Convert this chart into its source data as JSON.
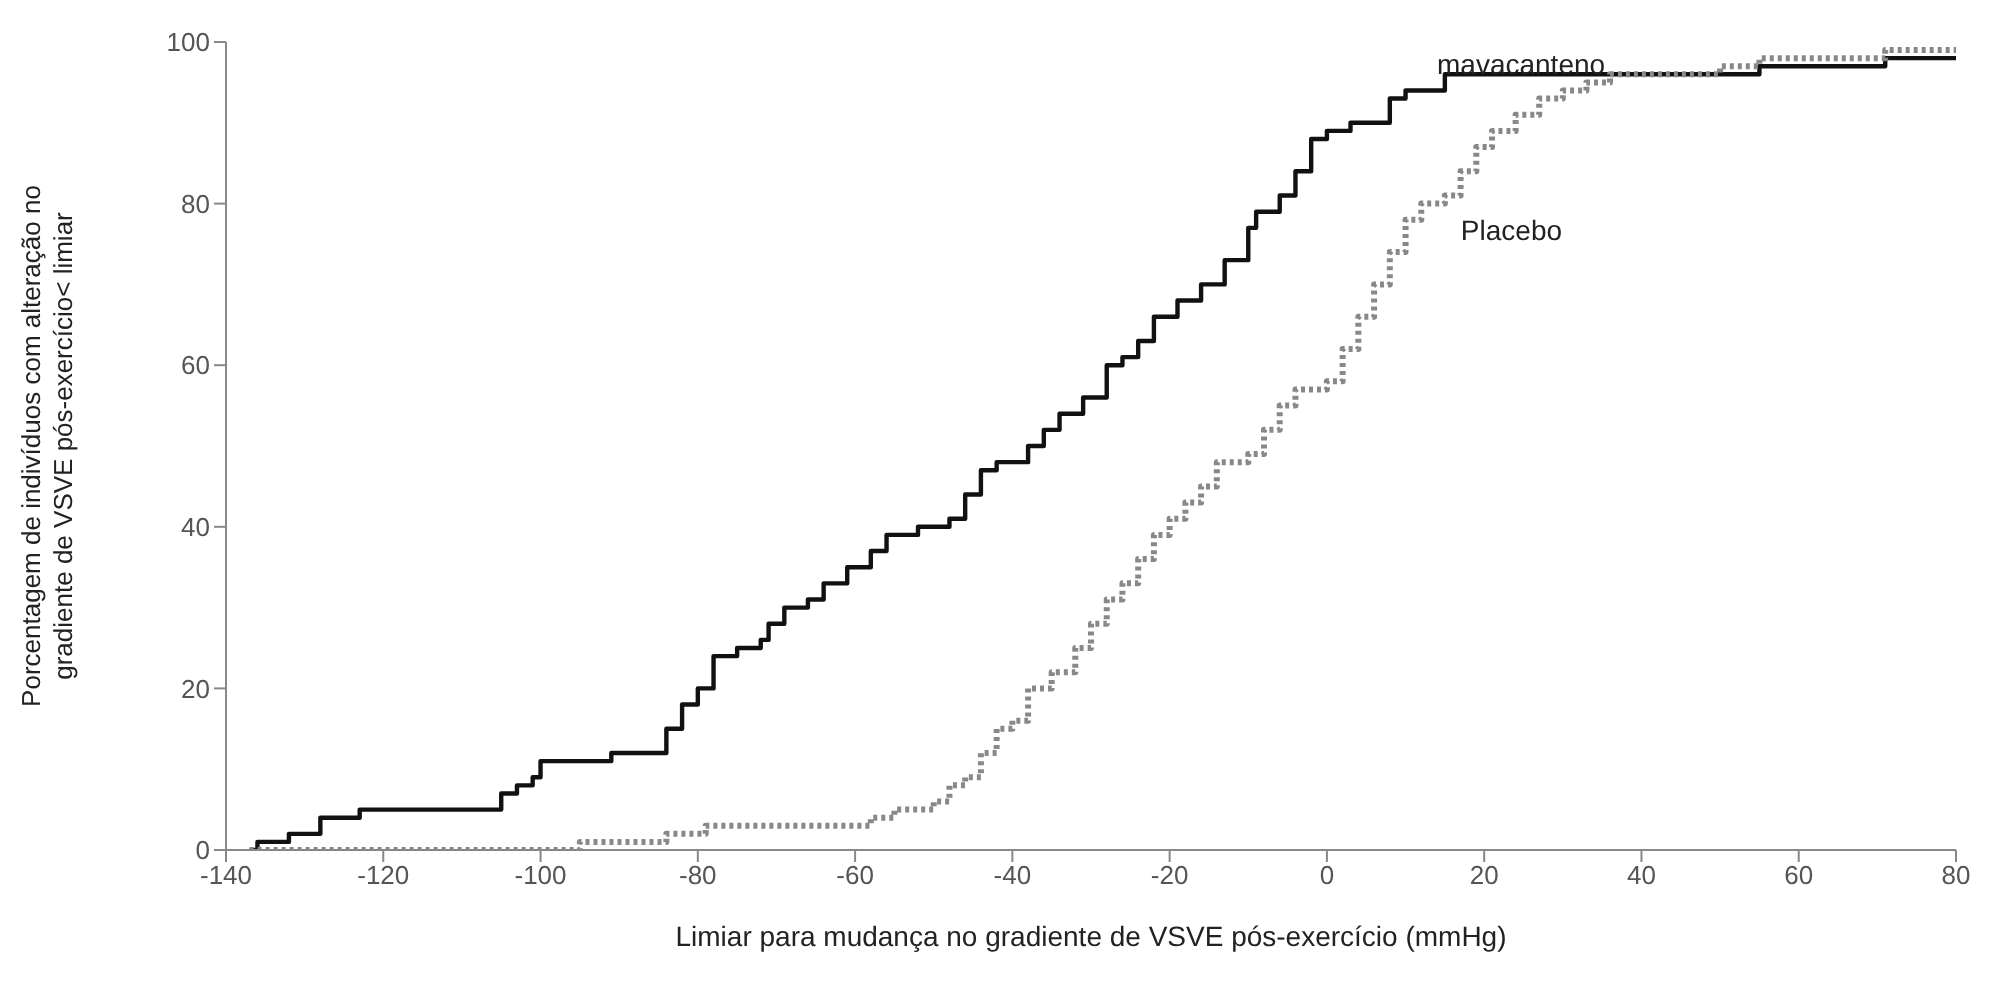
{
  "chart_data": {
    "type": "step",
    "xlabel": "Limiar para mudança no gradiente de VSVE pós-exercício (mmHg)",
    "ylabel": "Porcentagem de indivíduos com alteração no gradiente de VSVE pós-exercício< limiar",
    "xlim": [
      -140,
      80
    ],
    "xticks": [
      -140,
      -120,
      -100,
      -80,
      -60,
      -40,
      -20,
      0,
      20,
      40,
      60,
      80
    ],
    "ylim": [
      0,
      100
    ],
    "yticks": [
      0,
      20,
      40,
      60,
      80,
      100
    ],
    "marker": "none",
    "series": [
      {
        "name": "mavacanteno",
        "color": "#111111",
        "line_style": "solid",
        "x": [
          -137,
          -136,
          -133,
          -132,
          -129,
          -128,
          -124,
          -123,
          -106,
          -105,
          -103,
          -101,
          -100,
          -92,
          -91,
          -85,
          -84,
          -82,
          -80,
          -78,
          -75,
          -72,
          -71,
          -69,
          -66,
          -64,
          -61,
          -58,
          -56,
          -52,
          -48,
          -46,
          -44,
          -42,
          -38,
          -36,
          -34,
          -31,
          -28,
          -26,
          -24,
          -22,
          -19,
          -16,
          -13,
          -10,
          -9,
          -6,
          -4,
          -2,
          0,
          3,
          7,
          8,
          10,
          14,
          15,
          20,
          54,
          55,
          70,
          71,
          80
        ],
        "values": [
          0,
          1,
          1,
          2,
          2,
          4,
          4,
          5,
          5,
          7,
          8,
          9,
          11,
          11,
          12,
          12,
          15,
          18,
          20,
          24,
          25,
          26,
          28,
          30,
          31,
          33,
          35,
          37,
          39,
          40,
          41,
          44,
          47,
          48,
          50,
          52,
          54,
          56,
          60,
          61,
          63,
          66,
          68,
          70,
          73,
          77,
          79,
          81,
          84,
          88,
          89,
          90,
          90,
          93,
          94,
          94,
          96,
          96,
          96,
          97,
          97,
          98,
          98
        ]
      },
      {
        "name": "Placebo",
        "color": "#888888",
        "line_style": "dotted",
        "x": [
          -137,
          -96,
          -95,
          -85,
          -84,
          -80,
          -79,
          -60,
          -58,
          -55,
          -50,
          -48,
          -46,
          -44,
          -42,
          -40,
          -38,
          -35,
          -32,
          -30,
          -28,
          -26,
          -24,
          -22,
          -20,
          -18,
          -16,
          -14,
          -10,
          -8,
          -6,
          -4,
          0,
          2,
          4,
          6,
          8,
          10,
          12,
          15,
          17,
          19,
          21,
          24,
          27,
          30,
          33,
          36,
          45,
          50,
          55,
          70,
          71,
          80
        ],
        "values": [
          0,
          0,
          1,
          1,
          2,
          2,
          3,
          3,
          4,
          5,
          6,
          8,
          9,
          12,
          15,
          16,
          20,
          22,
          25,
          28,
          31,
          33,
          36,
          39,
          41,
          43,
          45,
          48,
          49,
          52,
          55,
          57,
          58,
          62,
          66,
          70,
          74,
          78,
          80,
          81,
          84,
          87,
          89,
          91,
          93,
          94,
          95,
          96,
          96,
          97,
          98,
          98,
          99,
          99
        ]
      }
    ]
  }
}
